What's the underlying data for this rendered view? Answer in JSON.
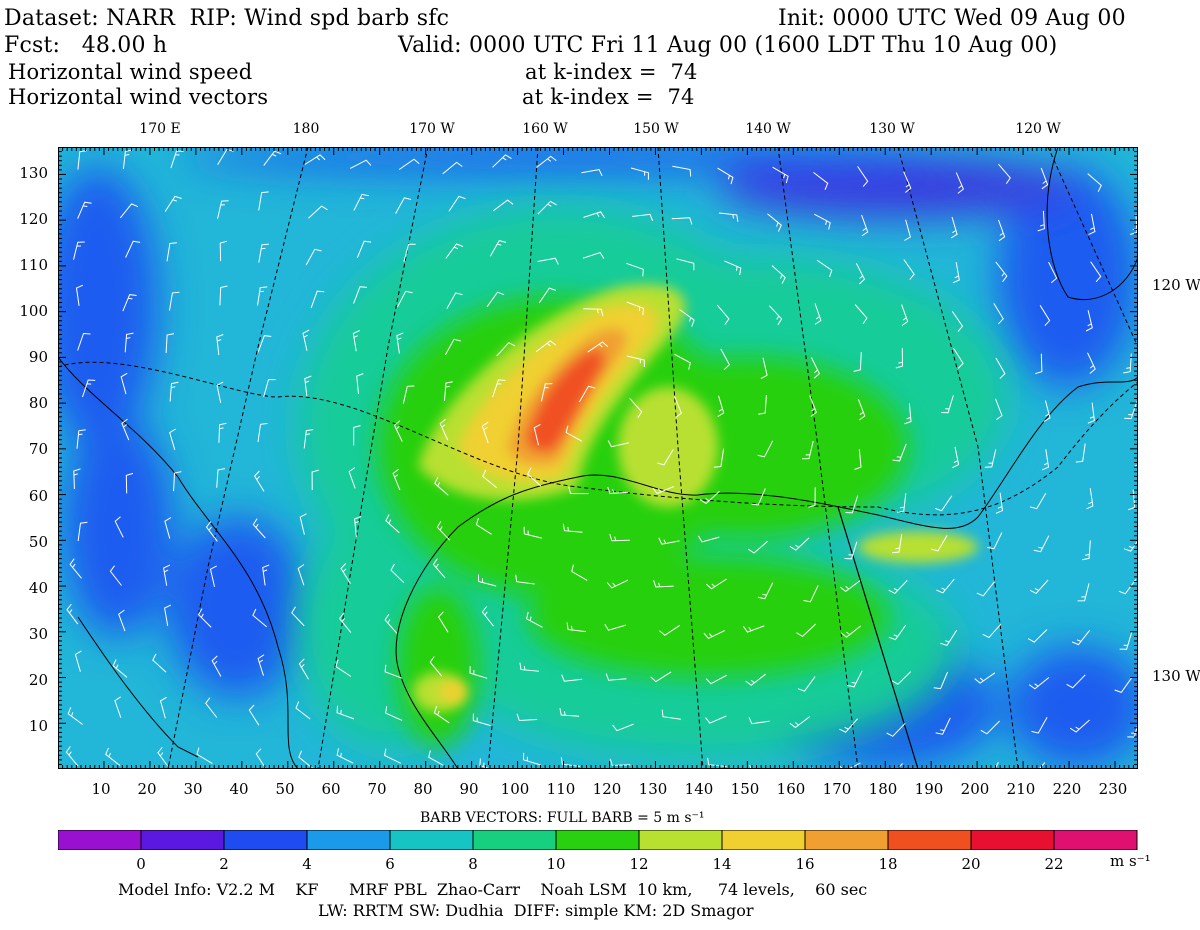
{
  "header": {
    "dataset": "Dataset: NARR  RIP: Wind spd barb sfc",
    "init": "Init: 0000 UTC Wed 09 Aug 00",
    "fcst": "Fcst:   48.00 h",
    "valid": "Valid: 0000 UTC Fri 11 Aug 00 (1600 LDT Thu 10 Aug 00)",
    "field1_name": "Horizontal wind speed",
    "field1_level": "at k-index =  74",
    "field2_name": "Horizontal wind vectors",
    "field2_level": "at k-index =  74"
  },
  "map": {
    "top_longitude_labels": [
      "170 E",
      "180",
      "170 W",
      "160 W",
      "150 W",
      "140 W",
      "130 W",
      "120 W"
    ],
    "right_labels": [
      "120 W",
      "130 W"
    ],
    "y_labels": [
      "130",
      "120",
      "110",
      "100",
      "90",
      "80",
      "70",
      "60",
      "50",
      "40",
      "30",
      "20",
      "10"
    ],
    "x_labels": [
      "10",
      "20",
      "30",
      "40",
      "50",
      "60",
      "70",
      "80",
      "90",
      "100",
      "110",
      "120",
      "130",
      "140",
      "150",
      "160",
      "170",
      "180",
      "190",
      "200",
      "210",
      "220",
      "230"
    ],
    "x_range": [
      1,
      235
    ],
    "y_range": [
      1,
      136
    ],
    "land_color": "#2fd020",
    "ocean_color": "#22b6d8"
  },
  "barb": {
    "title": "BARB VECTORS:  FULL BARB = 5 m s⁻¹"
  },
  "colorbar": {
    "labels": [
      "0",
      "2",
      "4",
      "6",
      "8",
      "10",
      "12",
      "14",
      "16",
      "18",
      "20",
      "22"
    ],
    "unit": "m s⁻¹",
    "colors": [
      "#9a10d0",
      "#5a18e0",
      "#1e4cf0",
      "#1a9ae8",
      "#16c4c4",
      "#16d080",
      "#28d010",
      "#b8e030",
      "#f0d030",
      "#f0a030",
      "#f05020",
      "#e81030",
      "#e01070"
    ]
  },
  "footer": {
    "line1": "Model Info: V2.2 M    KF      MRF PBL  Zhao-Carr    Noah LSM  10 km,     74 levels,    60 sec",
    "line2": "LW: RRTM SW: Dudhia  DIFF: simple KM: 2D Smagor"
  }
}
